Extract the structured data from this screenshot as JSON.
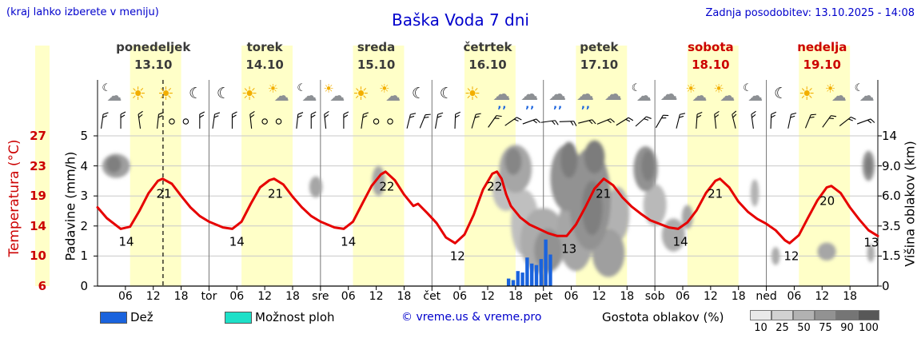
{
  "header": {
    "hint": "(kraj lahko izberete v meniju)",
    "title": "Baška Voda 7 dni",
    "updated": "Zadnja posodobitev: 13.10.2025 - 14:08"
  },
  "days": [
    {
      "name": "ponedeljek",
      "date": "13.10",
      "color": "#3a3a3a"
    },
    {
      "name": "torek",
      "date": "14.10",
      "color": "#3a3a3a"
    },
    {
      "name": "sreda",
      "date": "15.10",
      "color": "#3a3a3a"
    },
    {
      "name": "četrtek",
      "date": "16.10",
      "color": "#3a3a3a"
    },
    {
      "name": "petek",
      "date": "17.10",
      "color": "#3a3a3a"
    },
    {
      "name": "sobota",
      "date": "18.10",
      "color": "#cc0000"
    },
    {
      "name": "nedelja",
      "date": "19.10",
      "color": "#cc0000"
    }
  ],
  "axes": {
    "temp_label": "Temperatura (°C)",
    "temp_ticks": [
      "27",
      "23",
      "19",
      "14",
      "10",
      "6"
    ],
    "temp_color": "#cc0000",
    "precip_label": "Padavine (mm/h)",
    "precip_ticks": [
      "5",
      "4",
      "3",
      "2",
      "1",
      "0"
    ],
    "cloud_label": "Višina oblakov (km)",
    "cloud_ticks": [
      "14",
      "9.0",
      "6.0",
      "3.5",
      "1.5",
      "0"
    ],
    "hour_ticks": [
      "06",
      "12",
      "18"
    ],
    "day_abbrevs": [
      "tor",
      "sre",
      "čet",
      "pet",
      "sob",
      "ned"
    ]
  },
  "legend": {
    "rain_label": "Dež",
    "rain_color": "#1a63dd",
    "showers_label": "Možnost ploh",
    "showers_color": "#1de0c8",
    "copyright": "© vreme.us & vreme.pro",
    "density_label": "Gostota oblakov (%)",
    "density_ticks": [
      "10",
      "25",
      "50",
      "75",
      "90",
      "100"
    ],
    "density_colors": [
      "#e9e9e9",
      "#d2d2d2",
      "#b2b2b2",
      "#929292",
      "#757575",
      "#585858"
    ]
  },
  "icon_glyphs": {
    "sun": "☀",
    "moon": "☾",
    "cloud": "☁",
    "drops": ",,"
  },
  "icons": [
    "cloud-moon",
    "sun",
    "sun",
    "moon",
    "moon",
    "sun",
    "sun-cloud",
    "cloud-moon",
    "sun-cloud",
    "sun",
    "sun-cloud",
    "moon",
    "moon",
    "sun",
    "cloud-rain",
    "cloud-rain",
    "cloud-rain",
    "cloud-rain",
    "cloud",
    "cloud-moon",
    "cloud",
    "sun-cloud",
    "sun-cloud",
    "cloud-moon",
    "moon",
    "sun",
    "sun-cloud",
    "cloud-moon"
  ],
  "chart_data": {
    "type": "line",
    "title": "Baška Voda 7 dni",
    "x_unit": "hours from Monday 00:00 to Sunday 24:00",
    "hours_total": 168,
    "daytime_band": [
      7,
      18
    ],
    "band_color": "#ffffc8",
    "now_hour": 14.1,
    "temp_axis": [
      6,
      27
    ],
    "precip_axis": [
      0,
      5
    ],
    "cloud_axis_km": [
      "0",
      "1.5",
      "3.5",
      "6.0",
      "9.0",
      "14"
    ],
    "temp_color": "#e60000",
    "rain_color": "#1a63dd",
    "temperature": [
      [
        0,
        17
      ],
      [
        2,
        15.5
      ],
      [
        5,
        14
      ],
      [
        7,
        14.3
      ],
      [
        9,
        16.5
      ],
      [
        11,
        19
      ],
      [
        13,
        20.7
      ],
      [
        14,
        21
      ],
      [
        16,
        20.3
      ],
      [
        18,
        18.6
      ],
      [
        20,
        17
      ],
      [
        22,
        15.8
      ],
      [
        24,
        15
      ],
      [
        27,
        14.2
      ],
      [
        29,
        14
      ],
      [
        31,
        15
      ],
      [
        33,
        17.5
      ],
      [
        35,
        19.8
      ],
      [
        37,
        20.8
      ],
      [
        38,
        21
      ],
      [
        40,
        20.2
      ],
      [
        42,
        18.5
      ],
      [
        44,
        17
      ],
      [
        46,
        15.8
      ],
      [
        48,
        15
      ],
      [
        51,
        14.2
      ],
      [
        53,
        14
      ],
      [
        55,
        15
      ],
      [
        57,
        17.5
      ],
      [
        59,
        20
      ],
      [
        61,
        21.6
      ],
      [
        62,
        22
      ],
      [
        64,
        20.8
      ],
      [
        66,
        18.8
      ],
      [
        68,
        17.2
      ],
      [
        69,
        17.5
      ],
      [
        71,
        16.2
      ],
      [
        73,
        14.8
      ],
      [
        75,
        12.8
      ],
      [
        77,
        12
      ],
      [
        79,
        13.2
      ],
      [
        81,
        16
      ],
      [
        83,
        19.5
      ],
      [
        85,
        21.7
      ],
      [
        86,
        22
      ],
      [
        87,
        21
      ],
      [
        88,
        18.8
      ],
      [
        89,
        17.2
      ],
      [
        91,
        15.6
      ],
      [
        93,
        14.6
      ],
      [
        95,
        14
      ],
      [
        97,
        13.4
      ],
      [
        99,
        13
      ],
      [
        101,
        13
      ],
      [
        103,
        14.6
      ],
      [
        105,
        17
      ],
      [
        107,
        19.6
      ],
      [
        109,
        21
      ],
      [
        111,
        20.1
      ],
      [
        113,
        18.4
      ],
      [
        115,
        17.1
      ],
      [
        117,
        16.1
      ],
      [
        119,
        15.2
      ],
      [
        121,
        14.7
      ],
      [
        123,
        14.2
      ],
      [
        125,
        14
      ],
      [
        127,
        14.9
      ],
      [
        129,
        16.6
      ],
      [
        131,
        19
      ],
      [
        133,
        20.7
      ],
      [
        134,
        21
      ],
      [
        136,
        19.8
      ],
      [
        138,
        17.8
      ],
      [
        140,
        16.4
      ],
      [
        142,
        15.4
      ],
      [
        144,
        14.7
      ],
      [
        146,
        13.8
      ],
      [
        148,
        12.4
      ],
      [
        149,
        12
      ],
      [
        151,
        13.1
      ],
      [
        153,
        15.6
      ],
      [
        155,
        18
      ],
      [
        157,
        19.8
      ],
      [
        158,
        20
      ],
      [
        160,
        19
      ],
      [
        162,
        17
      ],
      [
        164,
        15.3
      ],
      [
        166,
        13.8
      ],
      [
        168,
        13
      ]
    ],
    "temp_point_labels": [
      {
        "t": 6.2,
        "temp": 12.2,
        "text": "14"
      },
      {
        "t": 14.3,
        "temp": 18.9,
        "text": "21"
      },
      {
        "t": 30,
        "temp": 12.2,
        "text": "14"
      },
      {
        "t": 38.3,
        "temp": 18.9,
        "text": "21"
      },
      {
        "t": 54,
        "temp": 12.2,
        "text": "14"
      },
      {
        "t": 62.3,
        "temp": 19.9,
        "text": "22"
      },
      {
        "t": 77.5,
        "temp": 10.2,
        "text": "12"
      },
      {
        "t": 85.5,
        "temp": 19.9,
        "text": "22"
      },
      {
        "t": 101.5,
        "temp": 11.2,
        "text": "13"
      },
      {
        "t": 108.9,
        "temp": 18.9,
        "text": "21"
      },
      {
        "t": 125.5,
        "temp": 12.2,
        "text": "14"
      },
      {
        "t": 133,
        "temp": 18.9,
        "text": "21"
      },
      {
        "t": 149.4,
        "temp": 10.2,
        "text": "12"
      },
      {
        "t": 157.1,
        "temp": 17.9,
        "text": "20"
      },
      {
        "t": 166.6,
        "temp": 12.1,
        "text": "13"
      }
    ],
    "rain_bars_mmh": [
      {
        "t": 88.5,
        "v": 0.25
      },
      {
        "t": 89.5,
        "v": 0.2
      },
      {
        "t": 90.5,
        "v": 0.5
      },
      {
        "t": 91.5,
        "v": 0.45
      },
      {
        "t": 92.5,
        "v": 0.95
      },
      {
        "t": 93.5,
        "v": 0.75
      },
      {
        "t": 94.5,
        "v": 0.7
      },
      {
        "t": 95.5,
        "v": 0.9
      },
      {
        "t": 96.5,
        "v": 1.55
      },
      {
        "t": 97.5,
        "v": 1.05
      }
    ],
    "clouds": [
      {
        "t": 4,
        "u": 4.0,
        "rt": 3,
        "ru": 0.4,
        "c": 60
      },
      {
        "t": 3.5,
        "u": 4.05,
        "rt": 1.6,
        "ru": 0.28,
        "c": 85
      },
      {
        "t": 47,
        "u": 3.3,
        "rt": 1.4,
        "ru": 0.35,
        "c": 55
      },
      {
        "t": 60.5,
        "u": 3.5,
        "rt": 1.4,
        "ru": 0.5,
        "c": 55
      },
      {
        "t": 88,
        "u": 3.2,
        "rt": 3,
        "ru": 0.7,
        "c": 35
      },
      {
        "t": 90,
        "u": 3.9,
        "rt": 3.5,
        "ru": 0.8,
        "c": 55
      },
      {
        "t": 89.5,
        "u": 4.15,
        "rt": 1.8,
        "ru": 0.45,
        "c": 80
      },
      {
        "t": 92,
        "u": 2.1,
        "rt": 3,
        "ru": 1.1,
        "c": 35
      },
      {
        "t": 96,
        "u": 1.5,
        "rt": 5,
        "ru": 1.1,
        "c": 50
      },
      {
        "t": 97,
        "u": 1.2,
        "rt": 3,
        "ru": 0.7,
        "c": 70
      },
      {
        "t": 101,
        "u": 3.6,
        "rt": 3.5,
        "ru": 1.1,
        "c": 70
      },
      {
        "t": 101.5,
        "u": 4.2,
        "rt": 1.8,
        "ru": 0.6,
        "c": 88
      },
      {
        "t": 103,
        "u": 1.8,
        "rt": 4,
        "ru": 1.3,
        "c": 55
      },
      {
        "t": 106,
        "u": 2.9,
        "rt": 4.5,
        "ru": 1.7,
        "c": 70
      },
      {
        "t": 107,
        "u": 4.3,
        "rt": 2.2,
        "ru": 0.55,
        "c": 88
      },
      {
        "t": 106.5,
        "u": 2.6,
        "rt": 2.2,
        "ru": 0.9,
        "c": 85
      },
      {
        "t": 110,
        "u": 1.1,
        "rt": 3.5,
        "ru": 0.8,
        "c": 60
      },
      {
        "t": 112,
        "u": 2.4,
        "rt": 2.5,
        "ru": 0.9,
        "c": 45
      },
      {
        "t": 118,
        "u": 3.9,
        "rt": 2.6,
        "ru": 0.75,
        "c": 70
      },
      {
        "t": 118.5,
        "u": 4.0,
        "rt": 1.4,
        "ru": 0.5,
        "c": 85
      },
      {
        "t": 120,
        "u": 2.7,
        "rt": 2.5,
        "ru": 0.7,
        "c": 40
      },
      {
        "t": 124,
        "u": 1.7,
        "rt": 2.5,
        "ru": 0.55,
        "c": 50
      },
      {
        "t": 127,
        "u": 2.3,
        "rt": 1.2,
        "ru": 0.4,
        "c": 55
      },
      {
        "t": 141.5,
        "u": 3.1,
        "rt": 0.9,
        "ru": 0.45,
        "c": 45
      },
      {
        "t": 146,
        "u": 1.0,
        "rt": 0.9,
        "ru": 0.3,
        "c": 50
      },
      {
        "t": 157,
        "u": 1.15,
        "rt": 2,
        "ru": 0.3,
        "c": 55
      },
      {
        "t": 166,
        "u": 4.0,
        "rt": 1.3,
        "ru": 0.5,
        "c": 70
      },
      {
        "t": 166,
        "u": 4.0,
        "rt": 0.7,
        "ru": 0.3,
        "c": 88
      },
      {
        "t": 166.5,
        "u": 1.1,
        "rt": 0.8,
        "ru": 0.3,
        "c": 50
      }
    ],
    "wind": [
      {
        "t": 1,
        "a": 8
      },
      {
        "t": 5,
        "a": 0
      },
      {
        "t": 9,
        "a": -8
      },
      {
        "t": 13,
        "a": 6
      },
      {
        "t": 16,
        "a": "c"
      },
      {
        "t": 19,
        "a": "c"
      },
      {
        "t": 22,
        "a": 0
      },
      {
        "t": 25,
        "a": 8
      },
      {
        "t": 29,
        "a": 0
      },
      {
        "t": 33,
        "a": -6
      },
      {
        "t": 36,
        "a": "c"
      },
      {
        "t": 39,
        "a": "c"
      },
      {
        "t": 43,
        "a": 6
      },
      {
        "t": 46,
        "a": 0
      },
      {
        "t": 49,
        "a": -6
      },
      {
        "t": 53,
        "a": 0
      },
      {
        "t": 57,
        "a": 8
      },
      {
        "t": 60,
        "a": "c"
      },
      {
        "t": 63,
        "a": "c"
      },
      {
        "t": 67,
        "a": 14
      },
      {
        "t": 70,
        "a": 22
      },
      {
        "t": 73,
        "a": 10
      },
      {
        "t": 77,
        "a": 2
      },
      {
        "t": 81,
        "a": 16
      },
      {
        "t": 85,
        "a": 35
      },
      {
        "t": 89,
        "a": 55
      },
      {
        "t": 93,
        "a": 70
      },
      {
        "t": 97,
        "a": 82
      },
      {
        "t": 101,
        "a": 88
      },
      {
        "t": 105,
        "a": 76
      },
      {
        "t": 109,
        "a": 68
      },
      {
        "t": 113,
        "a": 58
      },
      {
        "t": 117,
        "a": 48
      },
      {
        "t": 121,
        "a": 30
      },
      {
        "t": 125,
        "a": 14
      },
      {
        "t": 129,
        "a": 4
      },
      {
        "t": 133,
        "a": -6
      },
      {
        "t": 137,
        "a": -14
      },
      {
        "t": 141,
        "a": -8
      },
      {
        "t": 145,
        "a": 2
      },
      {
        "t": 149,
        "a": 12
      },
      {
        "t": 153,
        "a": 22
      },
      {
        "t": 157,
        "a": 36
      },
      {
        "t": 161,
        "a": 52
      },
      {
        "t": 165,
        "a": 70
      }
    ]
  }
}
